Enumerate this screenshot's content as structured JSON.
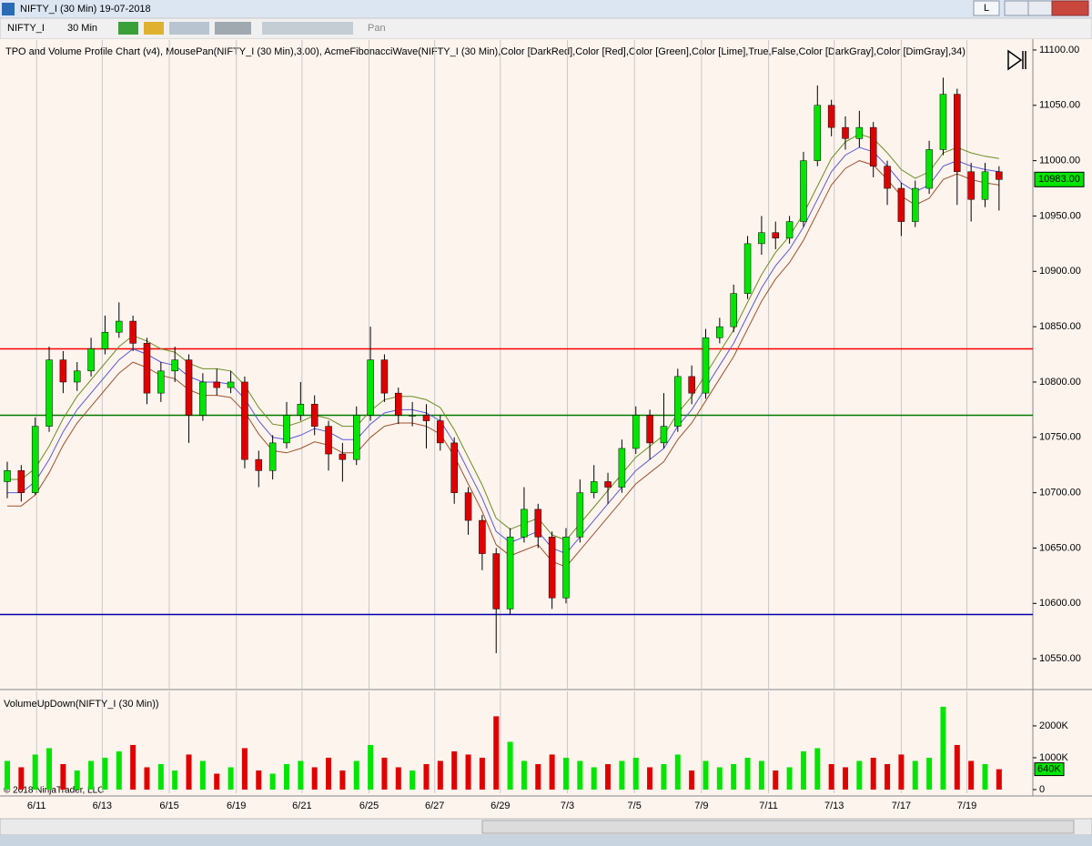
{
  "window": {
    "title": "NIFTY_I (30 Min)  19-07-2018",
    "button": "L"
  },
  "toolbar": {
    "instrument": "NIFTY_I",
    "interval": "30 Min",
    "mode": "Pan"
  },
  "copyright": "© 2018 NinjaTrader, LLC",
  "chart_data": [
    {
      "type": "candlestick",
      "title": "TPO and Volume Profile Chart (v4), MousePan(NIFTY_I (30 Min),3.00), AcmeFibonacciWave(NIFTY_I (30 Min),Color [DarkRed],Color [Red],Color [Green],Color [Lime],True,False,Color [DarkGray],Color [DimGray],34)",
      "up_color": "#00e600",
      "down_color": "#e00000",
      "open": [
        10710,
        10720,
        10700,
        10760,
        10820,
        10800,
        10810,
        10830,
        10845,
        10855,
        10835,
        10790,
        10810,
        10820,
        10770,
        10800,
        10795,
        10800,
        10730,
        10720,
        10745,
        10770,
        10780,
        10760,
        10735,
        10730,
        10770,
        10820,
        10790,
        10770,
        10770,
        10765,
        10745,
        10700,
        10675,
        10645,
        10595,
        10660,
        10685,
        10660,
        10605,
        10660,
        10700,
        10710,
        10705,
        10740,
        10770,
        10745,
        10760,
        10805,
        10790,
        10840,
        10850,
        10880,
        10925,
        10935,
        10930,
        10945,
        11000,
        11050,
        11030,
        11020,
        11030,
        10995,
        10975,
        10945,
        10975,
        11010,
        11060,
        10990,
        10965,
        10990
      ],
      "high": [
        10728,
        10725,
        10768,
        10832,
        10828,
        10818,
        10840,
        10860,
        10872,
        10860,
        10840,
        10818,
        10832,
        10825,
        10808,
        10812,
        10810,
        10805,
        10738,
        10752,
        10782,
        10800,
        10788,
        10765,
        10745,
        10778,
        10850,
        10825,
        10795,
        10782,
        10780,
        10770,
        10750,
        10705,
        10680,
        10650,
        10668,
        10705,
        10690,
        10665,
        10668,
        10712,
        10725,
        10718,
        10748,
        10778,
        10775,
        10790,
        10812,
        10815,
        10848,
        10858,
        10888,
        10932,
        10950,
        10945,
        10950,
        11008,
        11068,
        11055,
        11040,
        11045,
        11035,
        11000,
        10980,
        10982,
        11018,
        11075,
        11065,
        10998,
        10998,
        10995
      ],
      "low": [
        10695,
        10692,
        10698,
        10755,
        10790,
        10792,
        10805,
        10825,
        10840,
        10828,
        10780,
        10782,
        10800,
        10745,
        10765,
        10788,
        10790,
        10722,
        10705,
        10712,
        10740,
        10765,
        10752,
        10720,
        10710,
        10725,
        10765,
        10782,
        10762,
        10760,
        10740,
        10738,
        10690,
        10662,
        10630,
        10555,
        10590,
        10655,
        10650,
        10595,
        10600,
        10655,
        10695,
        10690,
        10700,
        10735,
        10730,
        10740,
        10755,
        10780,
        10785,
        10835,
        10845,
        10875,
        10915,
        10920,
        10925,
        10940,
        10995,
        11022,
        11010,
        11012,
        10985,
        10960,
        10932,
        10940,
        10970,
        11005,
        10960,
        10945,
        10958,
        10955
      ],
      "close": [
        10720,
        10700,
        10760,
        10820,
        10800,
        10810,
        10830,
        10845,
        10855,
        10835,
        10790,
        10810,
        10820,
        10770,
        10800,
        10795,
        10800,
        10730,
        10720,
        10745,
        10770,
        10780,
        10760,
        10735,
        10730,
        10770,
        10820,
        10790,
        10770,
        10770,
        10765,
        10745,
        10700,
        10675,
        10645,
        10595,
        10660,
        10685,
        10660,
        10605,
        10660,
        10700,
        10710,
        10705,
        10740,
        10770,
        10745,
        10760,
        10805,
        10790,
        10840,
        10850,
        10880,
        10925,
        10935,
        10930,
        10945,
        11000,
        11050,
        11030,
        11020,
        11030,
        10995,
        10975,
        10945,
        10975,
        11010,
        11060,
        10990,
        10965,
        10990,
        10983
      ],
      "lines": [
        {
          "color": "#6b8e23",
          "values": [
            10712,
            10712,
            10722,
            10742,
            10767,
            10787,
            10802,
            10817,
            10832,
            10842,
            10837,
            10830,
            10827,
            10817,
            10812,
            10812,
            10810,
            10797,
            10777,
            10762,
            10760,
            10764,
            10770,
            10767,
            10760,
            10760,
            10774,
            10784,
            10787,
            10787,
            10784,
            10777,
            10757,
            10732,
            10707,
            10677,
            10667,
            10672,
            10677,
            10662,
            10657,
            10672,
            10687,
            10702,
            10717,
            10732,
            10742,
            10752,
            10772,
            10787,
            10807,
            10827,
            10847,
            10872,
            10897,
            10917,
            10932,
            10952,
            10977,
            11002,
            11017,
            11024,
            11020,
            11007,
            10992,
            10984,
            10990,
            11007,
            11012,
            11007,
            11004,
            11002
          ]
        },
        {
          "color": "#5a5ad8",
          "values": [
            10700,
            10700,
            10710,
            10730,
            10755,
            10775,
            10790,
            10805,
            10820,
            10830,
            10825,
            10818,
            10815,
            10805,
            10800,
            10800,
            10798,
            10785,
            10765,
            10750,
            10748,
            10752,
            10758,
            10755,
            10748,
            10748,
            10762,
            10772,
            10775,
            10775,
            10772,
            10765,
            10745,
            10720,
            10695,
            10665,
            10655,
            10660,
            10665,
            10650,
            10645,
            10660,
            10675,
            10690,
            10705,
            10720,
            10730,
            10740,
            10760,
            10775,
            10795,
            10815,
            10835,
            10860,
            10885,
            10905,
            10920,
            10940,
            10965,
            10990,
            11005,
            11012,
            11008,
            10995,
            10980,
            10972,
            10978,
            10995,
            11000,
            10995,
            10992,
            10990
          ]
        },
        {
          "color": "#a0522d",
          "values": [
            10688,
            10688,
            10698,
            10718,
            10743,
            10763,
            10778,
            10793,
            10808,
            10818,
            10813,
            10806,
            10803,
            10793,
            10788,
            10788,
            10786,
            10773,
            10753,
            10738,
            10736,
            10740,
            10746,
            10743,
            10736,
            10736,
            10750,
            10760,
            10763,
            10763,
            10760,
            10753,
            10733,
            10708,
            10683,
            10653,
            10643,
            10648,
            10653,
            10638,
            10633,
            10648,
            10663,
            10678,
            10693,
            10708,
            10718,
            10728,
            10748,
            10763,
            10783,
            10803,
            10823,
            10848,
            10873,
            10893,
            10908,
            10928,
            10953,
            10978,
            10993,
            11000,
            10996,
            10983,
            10968,
            10960,
            10966,
            10983,
            10988,
            10983,
            10980,
            10978
          ]
        }
      ],
      "hlines": [
        {
          "value": 10830,
          "color": "#ff0000"
        },
        {
          "value": 10770,
          "color": "#007a00"
        },
        {
          "value": 10590,
          "color": "#0000b0"
        }
      ],
      "last_price": {
        "value": 10983,
        "label": "10983.00"
      },
      "xlim": [
        -0.52,
        73.42
      ],
      "xticks": [
        {
          "value": 2.1,
          "label": "6/11"
        },
        {
          "value": 6.8,
          "label": "6/13"
        },
        {
          "value": 11.6,
          "label": "6/15"
        },
        {
          "value": 16.4,
          "label": "6/19"
        },
        {
          "value": 21.1,
          "label": "6/21"
        },
        {
          "value": 25.9,
          "label": "6/25"
        },
        {
          "value": 30.6,
          "label": "6/27"
        },
        {
          "value": 35.3,
          "label": "6/29"
        },
        {
          "value": 40.1,
          "label": "7/3"
        },
        {
          "value": 44.9,
          "label": "7/5"
        },
        {
          "value": 49.7,
          "label": "7/9"
        },
        {
          "value": 54.5,
          "label": "7/11"
        },
        {
          "value": 59.2,
          "label": "7/13"
        },
        {
          "value": 64,
          "label": "7/17"
        },
        {
          "value": 68.7,
          "label": "7/19"
        }
      ],
      "ylim": [
        10523,
        11109
      ],
      "yticks": [
        {
          "value": 10550,
          "label": "10550.00"
        },
        {
          "value": 10600,
          "label": "10600.00"
        },
        {
          "value": 10650,
          "label": "10650.00"
        },
        {
          "value": 10700,
          "label": "10700.00"
        },
        {
          "value": 10750,
          "label": "10750.00"
        },
        {
          "value": 10800,
          "label": "10800.00"
        },
        {
          "value": 10850,
          "label": "10850.00"
        },
        {
          "value": 10900,
          "label": "10900.00"
        },
        {
          "value": 10950,
          "label": "10950.00"
        },
        {
          "value": 11000,
          "label": "11000.00"
        },
        {
          "value": 11050,
          "label": "11050.00"
        },
        {
          "value": 11100,
          "label": "11100.00"
        }
      ],
      "grid": true
    },
    {
      "type": "bar",
      "title": "VolumeUpDown(NIFTY_I (30 Min))",
      "values": [
        900,
        700,
        1100,
        1300,
        800,
        600,
        900,
        1000,
        1200,
        1400,
        700,
        800,
        600,
        1100,
        900,
        500,
        700,
        1300,
        600,
        500,
        800,
        900,
        700,
        1000,
        600,
        900,
        1400,
        1000,
        700,
        600,
        800,
        900,
        1200,
        1100,
        1000,
        2300,
        1500,
        900,
        800,
        1100,
        1000,
        900,
        700,
        800,
        900,
        1000,
        700,
        800,
        1100,
        600,
        900,
        700,
        800,
        1000,
        900,
        600,
        700,
        1200,
        1300,
        800,
        700,
        900,
        1000,
        800,
        1100,
        900,
        1000,
        2600,
        1400,
        900,
        800,
        640
      ],
      "last_value": {
        "value": 640,
        "label": "640K"
      },
      "ylim": [
        0,
        2940
      ],
      "yticks": [
        0,
        {
          "value": 1000,
          "label": "1000K"
        },
        {
          "value": 2000,
          "label": "2000K"
        }
      ]
    }
  ]
}
